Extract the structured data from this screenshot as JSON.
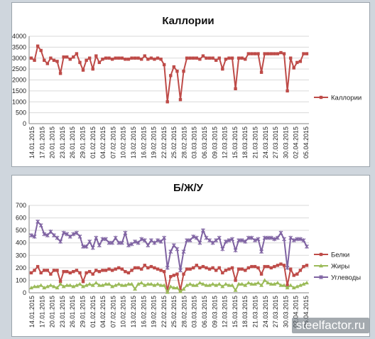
{
  "watermark": "steelfactor.ru",
  "chart_data": [
    {
      "type": "line",
      "title": "Каллории",
      "ylim": [
        0,
        4000
      ],
      "yticks": [
        "0",
        "500",
        "1000",
        "1500",
        "2000",
        "2500",
        "3000",
        "3500",
        "4000"
      ],
      "xtick_labels": [
        "14.01.2015",
        "17.01.2015",
        "20.01.2015",
        "23.01.2015",
        "26.01.2015",
        "29.01.2015",
        "01.02.2015",
        "04.02.2015",
        "07.02.2015",
        "10.02.2015",
        "13.02.2015",
        "16.02.2015",
        "19.02.2015",
        "22.02.2015",
        "25.02.2015",
        "28.02.2015",
        "03.03.2015",
        "06.03.2015",
        "09.03.2015",
        "12.03.2015",
        "15.03.2015",
        "18.03.2015",
        "21.03.2015",
        "24.03.2015",
        "27.03.2015",
        "30.03.2015",
        "02.04.2015",
        "05.04.2015"
      ],
      "legend_position": "right",
      "series": [
        {
          "name": "Каллории",
          "color": "#be4b48",
          "values": [
            3000,
            2900,
            3550,
            3350,
            2900,
            2750,
            3000,
            2900,
            2850,
            2300,
            3050,
            3050,
            2950,
            3050,
            3200,
            2800,
            2450,
            2900,
            3000,
            2500,
            3100,
            2800,
            2950,
            3000,
            3000,
            2950,
            3000,
            3000,
            3000,
            2950,
            2950,
            3000,
            3000,
            3000,
            2950,
            3100,
            2950,
            3000,
            2950,
            3000,
            2950,
            2700,
            1000,
            2200,
            2600,
            2400,
            1100,
            2400,
            3000,
            3000,
            3000,
            3000,
            2950,
            3100,
            3000,
            3000,
            3000,
            2900,
            3000,
            2500,
            2950,
            3000,
            3000,
            1600,
            3000,
            3000,
            2950,
            3200,
            3200,
            3200,
            3200,
            2350,
            3200,
            3200,
            3200,
            3200,
            3200,
            3250,
            3200,
            1500,
            3000,
            2550,
            2800,
            2850,
            3200,
            3200
          ]
        }
      ]
    },
    {
      "type": "line",
      "title": "Б/Ж/У",
      "ylim": [
        0,
        700
      ],
      "yticks": [
        "0",
        "100",
        "200",
        "300",
        "400",
        "500",
        "600",
        "700"
      ],
      "xtick_labels": [
        "14.01.2015",
        "17.01.2015",
        "20.01.2015",
        "23.01.2015",
        "26.01.2015",
        "29.01.2015",
        "01.02.2015",
        "04.02.2015",
        "07.02.2015",
        "10.02.2015",
        "13.02.2015",
        "16.02.2015",
        "19.02.2015",
        "22.02.2015",
        "25.02.2015",
        "28.02.2015",
        "03.03.2015",
        "06.03.2015",
        "09.03.2015",
        "12.03.2015",
        "15.03.2015",
        "18.03.2015",
        "21.03.2015",
        "24.03.2015",
        "27.03.2015",
        "30.03.2015",
        "02.04.2015",
        "05.04.2015"
      ],
      "legend_position": "right",
      "series": [
        {
          "name": "Белки",
          "color": "#be4b48",
          "values": [
            160,
            180,
            210,
            160,
            180,
            180,
            150,
            180,
            180,
            90,
            170,
            170,
            160,
            170,
            180,
            160,
            90,
            160,
            170,
            150,
            180,
            170,
            180,
            180,
            190,
            180,
            190,
            200,
            190,
            170,
            160,
            180,
            200,
            200,
            190,
            220,
            200,
            210,
            200,
            190,
            180,
            170,
            20,
            130,
            140,
            150,
            20,
            150,
            190,
            190,
            200,
            220,
            200,
            210,
            200,
            190,
            200,
            180,
            200,
            160,
            180,
            190,
            200,
            100,
            190,
            190,
            180,
            200,
            210,
            210,
            200,
            150,
            210,
            210,
            200,
            210,
            220,
            230,
            220,
            60,
            190,
            140,
            150,
            180,
            210,
            220
          ]
        },
        {
          "name": "Жиры",
          "color": "#9bbb59",
          "values": [
            40,
            50,
            50,
            60,
            40,
            50,
            60,
            50,
            40,
            70,
            50,
            60,
            60,
            50,
            60,
            70,
            50,
            60,
            70,
            60,
            80,
            60,
            60,
            70,
            70,
            50,
            60,
            70,
            60,
            60,
            70,
            70,
            30,
            70,
            80,
            60,
            70,
            70,
            60,
            70,
            60,
            60,
            5,
            50,
            40,
            40,
            10,
            30,
            60,
            70,
            60,
            60,
            80,
            70,
            60,
            60,
            70,
            60,
            70,
            50,
            70,
            60,
            60,
            20,
            70,
            70,
            60,
            80,
            70,
            70,
            80,
            60,
            100,
            80,
            70,
            70,
            80,
            60,
            60,
            40,
            60,
            40,
            50,
            60,
            70,
            80
          ]
        },
        {
          "name": "Углеводы",
          "color": "#7f63a2",
          "values": [
            460,
            450,
            570,
            540,
            470,
            460,
            490,
            460,
            440,
            410,
            480,
            470,
            450,
            470,
            480,
            450,
            370,
            370,
            410,
            360,
            440,
            380,
            430,
            430,
            400,
            400,
            440,
            400,
            400,
            480,
            380,
            390,
            410,
            400,
            430,
            420,
            380,
            420,
            400,
            420,
            410,
            440,
            200,
            330,
            380,
            350,
            180,
            330,
            420,
            420,
            450,
            440,
            400,
            500,
            440,
            420,
            400,
            420,
            440,
            350,
            410,
            420,
            430,
            340,
            420,
            420,
            410,
            440,
            440,
            420,
            430,
            330,
            440,
            440,
            440,
            430,
            440,
            480,
            430,
            200,
            440,
            420,
            430,
            430,
            420,
            370
          ]
        }
      ]
    }
  ]
}
